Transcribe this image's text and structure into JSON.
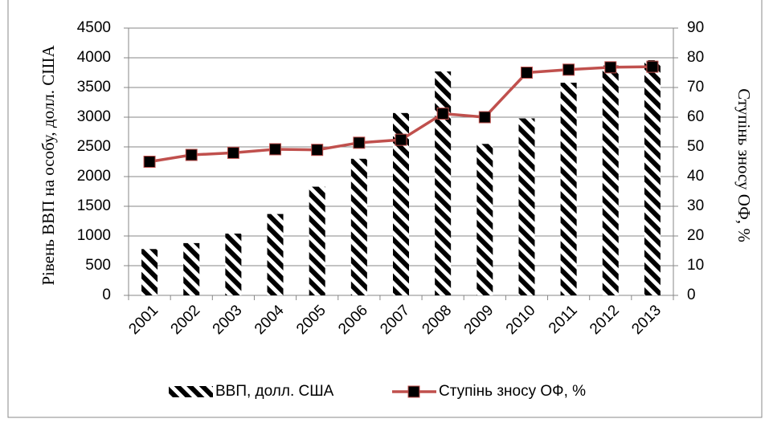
{
  "chart_data": {
    "type": "bar_line",
    "categories": [
      "2001",
      "2002",
      "2003",
      "2004",
      "2005",
      "2006",
      "2007",
      "2008",
      "2009",
      "2010",
      "2011",
      "2012",
      "2013"
    ],
    "y_label": "Рівень ВВП на особу, долл. США",
    "y2_label": "Ступінь зносу ОФ, %",
    "series": [
      {
        "name": "ВВП, долл. США",
        "type": "bar",
        "color": "#000000",
        "pattern": "hatch",
        "values": [
          780,
          880,
          1040,
          1370,
          1830,
          2300,
          3070,
          3770,
          2550,
          2980,
          3580,
          3870,
          3960
        ]
      },
      {
        "name": "Ступінь зносу ОФ, %",
        "type": "line",
        "axis": "y2",
        "color": "#c0504d",
        "marker_color": "#000000",
        "values": [
          45,
          47.3,
          48,
          49.2,
          49,
          51.4,
          52.4,
          61.2,
          60,
          75,
          76,
          76.8,
          77
        ]
      }
    ],
    "ylim": [
      0,
      4500
    ],
    "yticks": [
      0,
      500,
      1000,
      1500,
      2000,
      2500,
      3000,
      3500,
      4000,
      4500
    ],
    "y2lim": [
      0,
      90
    ],
    "y2ticks": [
      0,
      10,
      20,
      30,
      40,
      50,
      60,
      70,
      80,
      90
    ],
    "grid": true,
    "legend": "bottom"
  }
}
